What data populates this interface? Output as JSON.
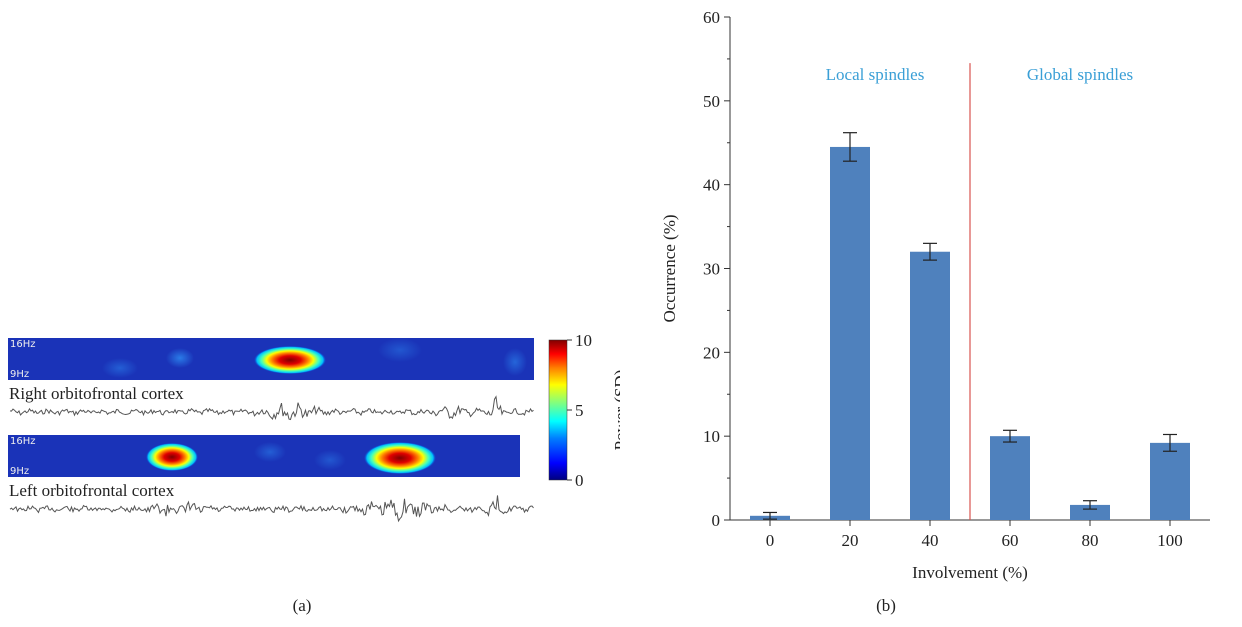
{
  "panel_a": {
    "panel_label": "(a)",
    "traces": [
      {
        "region": "Right orbitofrontal cortex",
        "freq_high": "16Hz",
        "freq_low": "9Hz"
      },
      {
        "region": "Left orbitofrontal cortex",
        "freq_high": "16Hz",
        "freq_low": "9Hz"
      }
    ],
    "colorbar": {
      "label": "Power (SD)",
      "ticks": [
        "10",
        "5",
        "0"
      ],
      "colors": [
        "#00007f",
        "#0000ff",
        "#0080ff",
        "#00ffff",
        "#80ff80",
        "#ffff00",
        "#ff8000",
        "#ff0000",
        "#800000"
      ]
    }
  },
  "panel_b": {
    "panel_label": "(b)"
  },
  "chart_data": {
    "type": "bar",
    "categories": [
      "0",
      "20",
      "40",
      "60",
      "80",
      "100"
    ],
    "values": [
      0.5,
      44.5,
      32,
      10,
      1.8,
      9.2
    ],
    "errors": [
      0.4,
      1.7,
      1.0,
      0.7,
      0.5,
      1.0
    ],
    "xlabel": "Involvement (%)",
    "ylabel": "Occurrence (%)",
    "ylim": [
      0,
      60
    ],
    "yticks": [
      0,
      10,
      20,
      30,
      40,
      50,
      60
    ],
    "bar_color": "#4f81bd",
    "divider_color": "#d9534f",
    "divider_between": [
      "40",
      "60"
    ],
    "annotations": {
      "left": "Local spindles",
      "right": "Global spindles"
    },
    "grid": false
  }
}
